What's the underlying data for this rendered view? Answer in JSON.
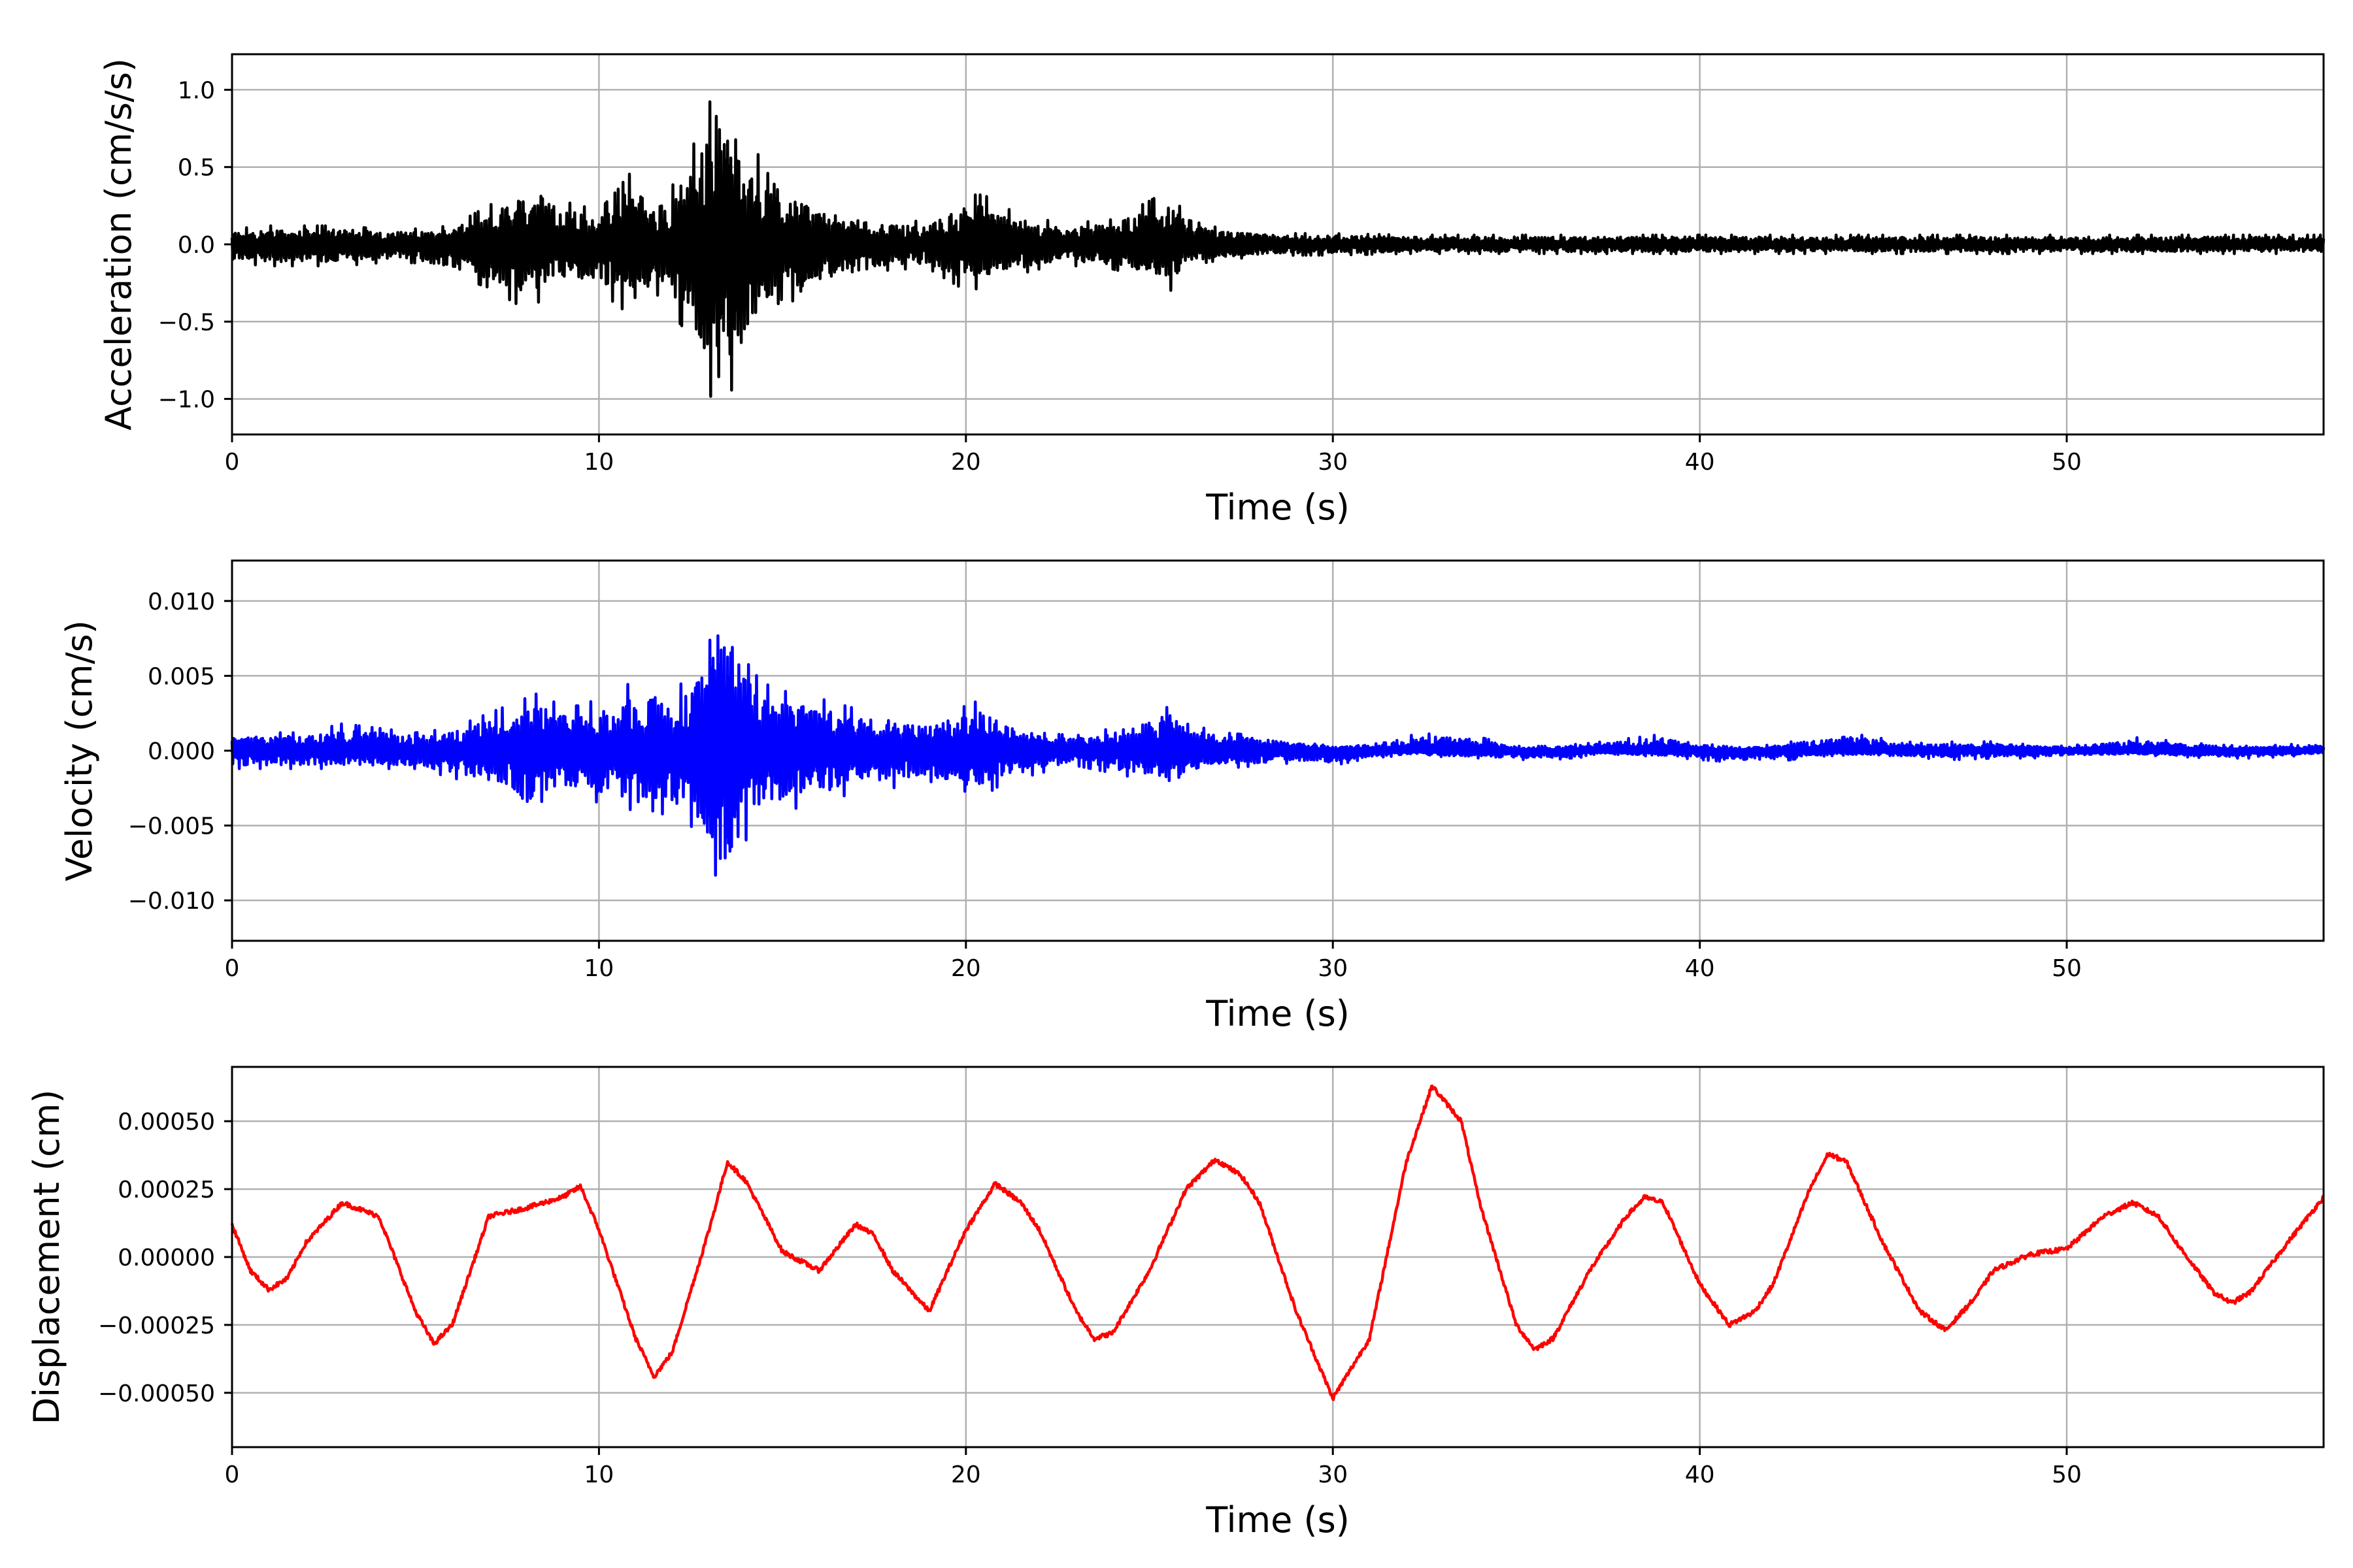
{
  "chart_data": [
    {
      "type": "line",
      "xlabel": "Time (s)",
      "ylabel": "Acceleration (cm/s/s)",
      "xlim": [
        0,
        57
      ],
      "ylim": [
        -1.23,
        1.23
      ],
      "xticks": [
        0,
        10,
        20,
        30,
        40,
        50
      ],
      "xtick_labels": [
        "0",
        "10",
        "20",
        "30",
        "40",
        "50"
      ],
      "yticks": [
        -1.0,
        -0.5,
        0.0,
        0.5,
        1.0
      ],
      "ytick_labels": [
        "−1.0",
        "−0.5",
        "0.0",
        "0.5",
        "1.0"
      ],
      "grid": true,
      "color": "#000000",
      "series": [
        {
          "x": [
            0,
            1,
            2,
            3,
            4,
            5,
            6,
            7,
            7.5,
            8,
            8.3,
            9,
            10,
            10.5,
            10.8,
            11,
            11.5,
            12,
            12.5,
            13,
            13.2,
            13.3,
            13.5,
            13.7,
            14,
            14.3,
            14.5,
            15,
            15.5,
            16,
            17,
            18,
            19,
            20,
            20.5,
            21,
            22,
            23,
            24,
            25,
            25.6,
            26,
            27,
            28,
            29,
            30,
            32,
            34,
            36,
            38,
            40,
            42,
            44,
            46,
            48,
            50,
            52,
            54,
            56,
            57
          ],
          "values": [
            0.1,
            0.12,
            0.12,
            0.12,
            0.1,
            0.1,
            0.12,
            0.25,
            0.32,
            0.38,
            0.44,
            0.28,
            0.22,
            0.35,
            0.45,
            0.48,
            0.3,
            0.38,
            0.6,
            0.9,
            1.1,
            1.12,
            0.97,
            0.9,
            0.65,
            0.6,
            0.5,
            0.3,
            0.38,
            0.26,
            0.2,
            0.15,
            0.15,
            0.32,
            0.32,
            0.24,
            0.16,
            0.14,
            0.16,
            0.28,
            0.36,
            0.16,
            0.1,
            0.08,
            0.07,
            0.07,
            0.06,
            0.06,
            0.06,
            0.06,
            0.06,
            0.06,
            0.06,
            0.06,
            0.06,
            0.06,
            0.06,
            0.06,
            0.06,
            0.06
          ],
          "values_min": [
            -0.12,
            -0.14,
            -0.14,
            -0.14,
            -0.12,
            -0.12,
            -0.2,
            -0.28,
            -0.35,
            -0.42,
            -0.38,
            -0.3,
            -0.28,
            -0.4,
            -0.44,
            -0.46,
            -0.3,
            -0.45,
            -0.6,
            -0.95,
            -1.1,
            -1.12,
            -1.0,
            -0.9,
            -0.8,
            -0.55,
            -0.5,
            -0.35,
            -0.38,
            -0.28,
            -0.22,
            -0.16,
            -0.16,
            -0.3,
            -0.28,
            -0.22,
            -0.16,
            -0.14,
            -0.16,
            -0.22,
            -0.3,
            -0.14,
            -0.1,
            -0.08,
            -0.07,
            -0.07,
            -0.06,
            -0.06,
            -0.06,
            -0.06,
            -0.06,
            -0.06,
            -0.06,
            -0.06,
            -0.06,
            -0.06,
            -0.06,
            -0.06,
            -0.06,
            -0.06
          ]
        }
      ]
    },
    {
      "type": "line",
      "xlabel": "Time (s)",
      "ylabel": "Velocity (cm/s)",
      "xlim": [
        0,
        57
      ],
      "ylim": [
        -0.0127,
        0.0127
      ],
      "xticks": [
        0,
        10,
        20,
        30,
        40,
        50
      ],
      "xtick_labels": [
        "0",
        "10",
        "20",
        "30",
        "40",
        "50"
      ],
      "yticks": [
        -0.01,
        -0.005,
        0.0,
        0.005,
        0.01
      ],
      "ytick_labels": [
        "−0.010",
        "−0.005",
        "0.000",
        "0.005",
        "0.010"
      ],
      "grid": true,
      "color": "#0000ff",
      "series": [
        {
          "x": [
            0,
            1,
            2,
            3,
            4,
            5,
            6,
            7,
            7.5,
            8,
            8.3,
            9,
            9.5,
            10,
            10.5,
            10.8,
            11,
            11.5,
            12,
            12.5,
            13,
            13.2,
            13.3,
            13.5,
            13.7,
            14,
            14.3,
            14.5,
            15,
            15.5,
            16,
            17,
            18,
            19,
            20,
            20.5,
            21,
            22,
            23,
            24,
            25,
            25.6,
            26,
            27,
            28,
            29,
            30,
            31,
            32,
            33,
            34,
            35,
            36,
            37,
            38,
            39,
            40,
            41,
            42,
            43,
            44,
            45,
            46,
            47,
            48,
            49,
            50,
            51,
            52,
            53,
            54,
            55,
            56,
            57
          ],
          "values": [
            0.0012,
            0.0012,
            0.0012,
            0.0018,
            0.0015,
            0.0012,
            0.0015,
            0.0025,
            0.003,
            0.0035,
            0.0038,
            0.003,
            0.003,
            0.0035,
            0.003,
            0.0045,
            0.0035,
            0.0045,
            0.004,
            0.005,
            0.007,
            0.0105,
            0.0115,
            0.0105,
            0.008,
            0.006,
            0.005,
            0.0045,
            0.004,
            0.0038,
            0.0035,
            0.0028,
            0.0025,
            0.002,
            0.003,
            0.0035,
            0.0025,
            0.0012,
            0.001,
            0.0015,
            0.0025,
            0.003,
            0.0018,
            0.0012,
            0.001,
            0.0006,
            0.0003,
            0.0005,
            0.001,
            0.0012,
            0.0009,
            0.0003,
            0.0003,
            0.0005,
            0.0008,
            0.0011,
            0.0005,
            0.0002,
            0.0004,
            0.0008,
            0.0012,
            0.0008,
            0.0005,
            0.0006,
            0.0006,
            0.0004,
            0.0003,
            0.0006,
            0.0009,
            0.0006,
            0.0004,
            0.0003,
            0.0004,
            0.0006
          ],
          "values_min": [
            -0.0012,
            -0.0012,
            -0.0012,
            -0.0012,
            -0.0012,
            -0.0012,
            -0.0018,
            -0.0025,
            -0.003,
            -0.0046,
            -0.0035,
            -0.003,
            -0.003,
            -0.0035,
            -0.003,
            -0.0052,
            -0.0045,
            -0.004,
            -0.0045,
            -0.005,
            -0.007,
            -0.0085,
            -0.0092,
            -0.009,
            -0.008,
            -0.006,
            -0.005,
            -0.0045,
            -0.004,
            -0.0038,
            -0.0035,
            -0.0028,
            -0.0025,
            -0.002,
            -0.0035,
            -0.003,
            -0.0022,
            -0.0015,
            -0.001,
            -0.0015,
            -0.002,
            -0.0028,
            -0.0018,
            -0.0012,
            -0.001,
            -0.0008,
            -0.001,
            -0.0005,
            -0.0003,
            -0.0004,
            -0.0005,
            -0.0006,
            -0.0006,
            -0.0004,
            -0.0003,
            -0.0004,
            -0.0006,
            -0.0008,
            -0.0008,
            -0.0004,
            -0.0003,
            -0.0004,
            -0.0005,
            -0.0006,
            -0.0005,
            -0.0005,
            -0.0004,
            -0.0003,
            -0.0003,
            -0.0004,
            -0.0005,
            -0.0005,
            -0.0004,
            -0.0002
          ]
        }
      ]
    },
    {
      "type": "line",
      "xlabel": "Time (s)",
      "ylabel": "Displacement (cm)",
      "xlim": [
        0,
        57
      ],
      "ylim": [
        -0.0007,
        0.0007
      ],
      "xticks": [
        0,
        10,
        20,
        30,
        40,
        50
      ],
      "xtick_labels": [
        "0",
        "10",
        "20",
        "30",
        "40",
        "50"
      ],
      "yticks": [
        -0.0005,
        -0.00025,
        0.0,
        0.00025,
        0.0005
      ],
      "ytick_labels": [
        "−0.00050",
        "−0.00025",
        "0.00000",
        "0.00025",
        "0.00050"
      ],
      "grid": true,
      "color": "#ff0000",
      "series": [
        {
          "x": [
            0,
            0.5,
            1,
            1.5,
            2,
            3,
            4,
            5,
            5.5,
            6,
            7,
            8,
            9,
            9.5,
            10,
            11,
            11.5,
            12,
            13,
            13.5,
            14,
            15,
            16,
            17,
            17.5,
            18,
            19,
            20,
            20.8,
            21.5,
            22,
            23,
            23.5,
            24,
            25,
            26,
            26.8,
            27.5,
            28,
            29,
            30,
            31,
            32,
            32.7,
            33.5,
            34,
            35,
            35.5,
            36,
            37,
            38,
            38.5,
            39,
            40,
            40.8,
            41.5,
            42,
            43,
            43.5,
            44,
            45,
            46,
            46.7,
            47.5,
            48,
            49,
            50,
            51,
            51.8,
            52.5,
            53,
            54,
            54.5,
            55,
            56,
            57
          ],
          "values": [
            0.00012,
            -5e-05,
            -0.00012,
            -8e-05,
            5e-05,
            0.0002,
            0.00015,
            -0.0002,
            -0.00032,
            -0.00025,
            0.00015,
            0.00018,
            0.00022,
            0.00026,
            0.0001,
            -0.0003,
            -0.00044,
            -0.00035,
            0.0001,
            0.00035,
            0.00028,
            2e-05,
            -5e-05,
            0.00012,
            8e-05,
            -5e-05,
            -0.0002,
            0.0001,
            0.00027,
            0.0002,
            0.0001,
            -0.0002,
            -0.0003,
            -0.00028,
            -5e-05,
            0.00025,
            0.00036,
            0.0003,
            0.0002,
            -0.0002,
            -0.00052,
            -0.0003,
            0.00035,
            0.00063,
            0.0005,
            0.0002,
            -0.00025,
            -0.00034,
            -0.0003,
            -5e-05,
            0.00015,
            0.00022,
            0.0002,
            -0.0001,
            -0.00025,
            -0.0002,
            -0.0001,
            0.00025,
            0.00038,
            0.00035,
            5e-05,
            -0.0002,
            -0.00027,
            -0.00015,
            -5e-05,
            1e-05,
            3e-05,
            0.00015,
            0.0002,
            0.00015,
            5e-05,
            -0.00013,
            -0.00017,
            -0.00013,
            5e-05,
            0.00022
          ]
        }
      ]
    }
  ]
}
